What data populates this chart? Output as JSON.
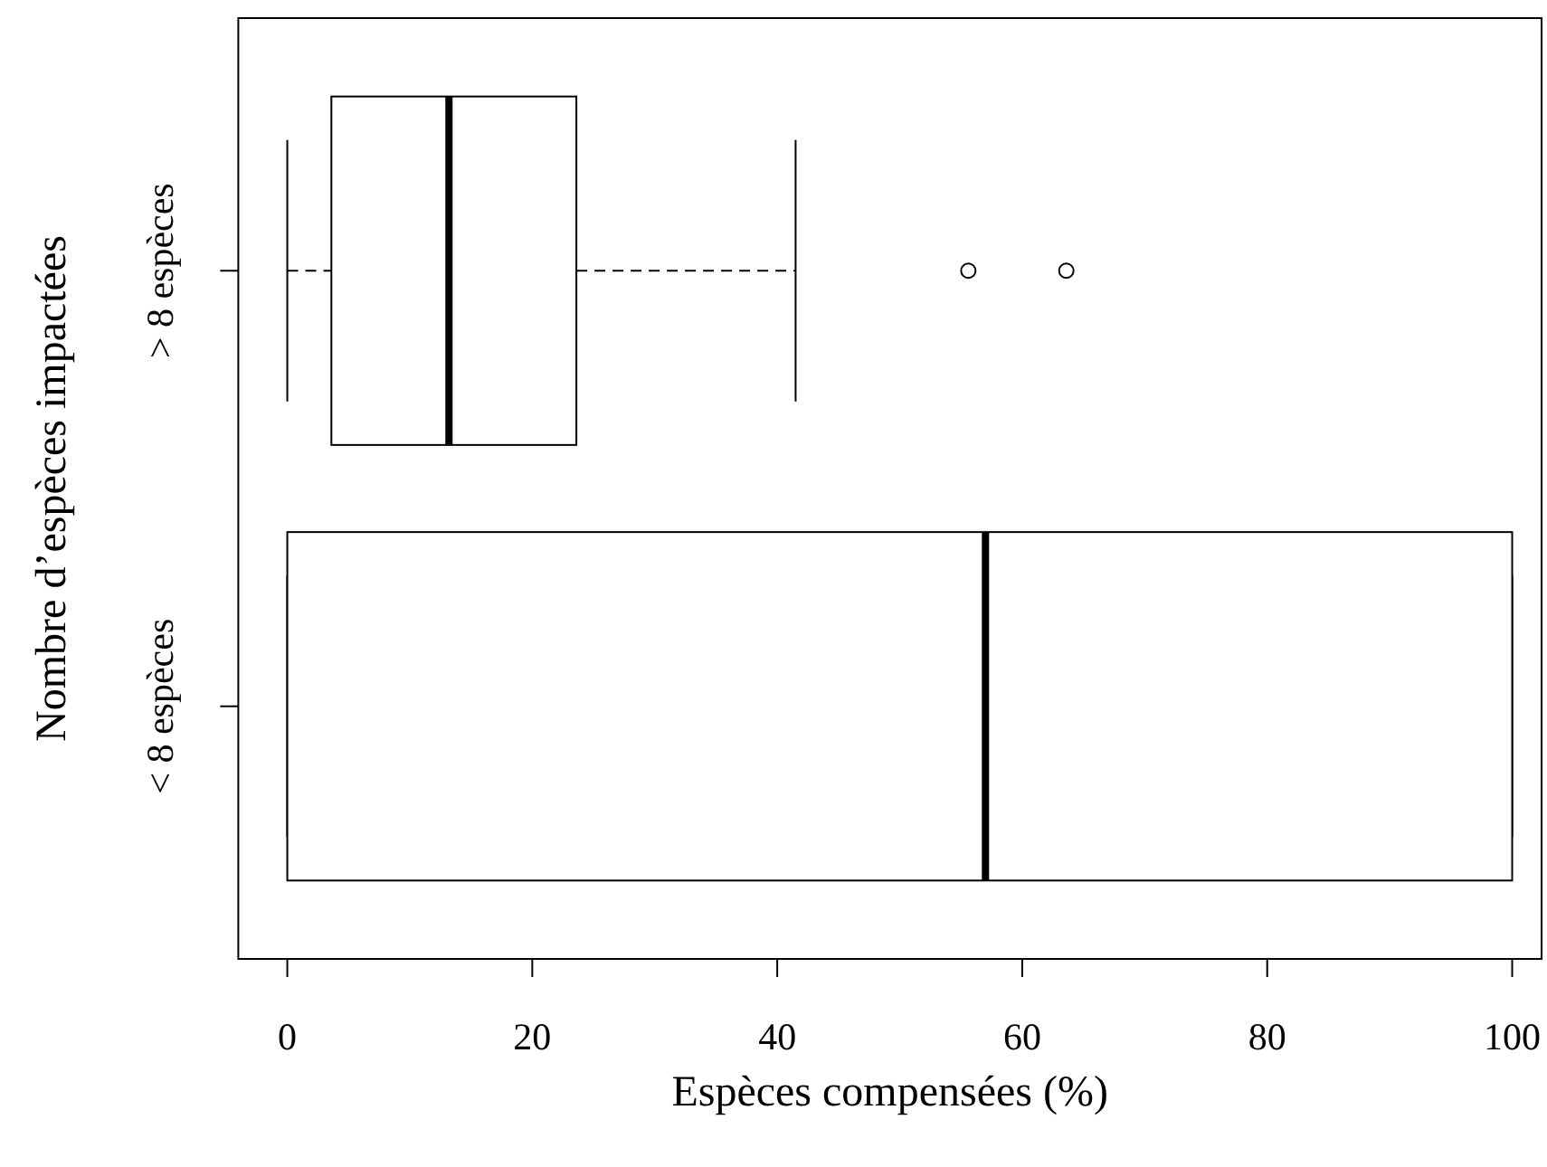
{
  "chart_data": {
    "type": "box",
    "orientation": "horizontal",
    "xlabel": "Espèces compensées (%)",
    "ylabel": "Nombre d’espèces impactées",
    "categories": [
      "> 8 espèces",
      "< 8 espèces"
    ],
    "boxes": [
      {
        "low": 0,
        "q1": 3.6,
        "median": 13.2,
        "q3": 23.6,
        "high": 41.5,
        "outliers": [
          55.6,
          63.6
        ]
      },
      {
        "low": 0,
        "q1": 0,
        "median": 57,
        "q3": 100,
        "high": 100
      }
    ],
    "xlim": [
      -4,
      102.4
    ],
    "xticks": [
      0,
      20,
      40,
      60,
      80,
      100
    ]
  }
}
